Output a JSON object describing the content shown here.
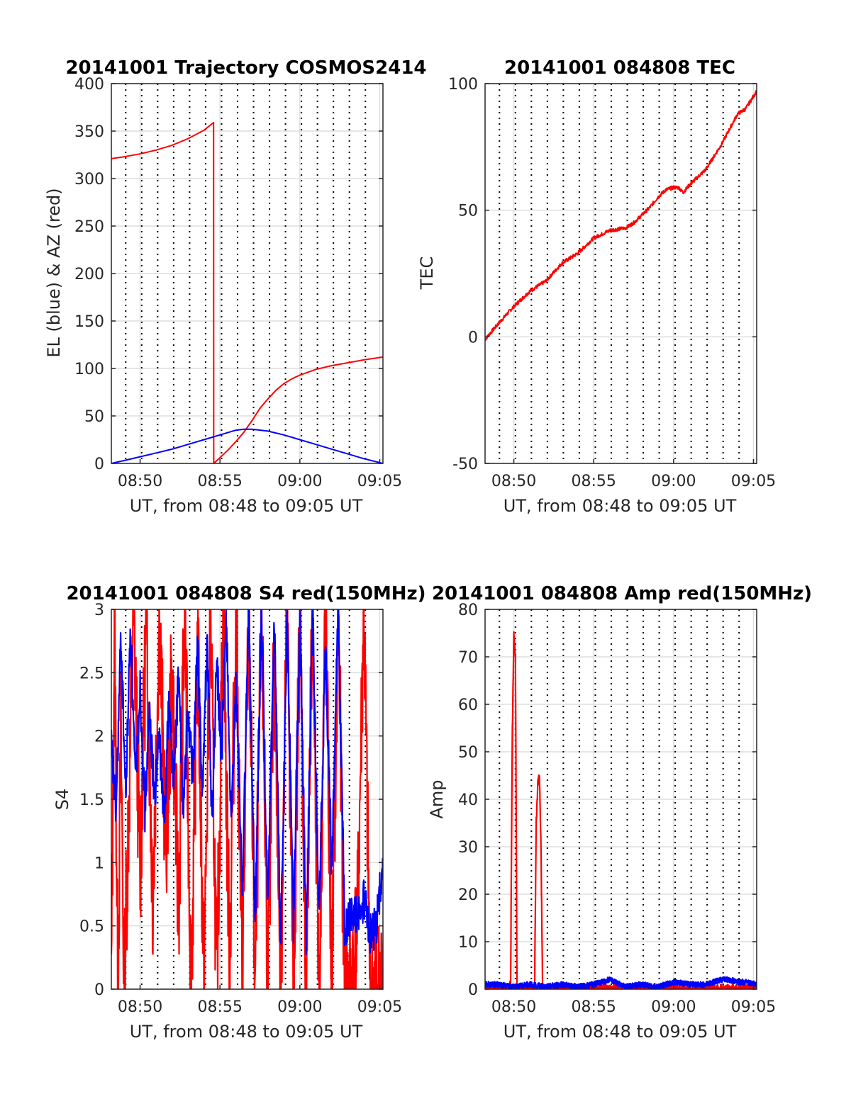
{
  "colors": {
    "red": "#ff0000",
    "blue": "#0000ff",
    "grid": "#dedede",
    "vline": "#000000"
  },
  "chart_data": [
    {
      "type": "line",
      "title": "20141001 Trajectory COSMOS2414",
      "xlabel": "UT, from 08:48 to 09:05 UT",
      "ylabel": "EL (blue) & AZ (red)",
      "x_unit": "minutes after 08:00",
      "xlim": [
        48.2,
        65.2
      ],
      "ylim": [
        0,
        400
      ],
      "xticks": [
        "08:50",
        "08:55",
        "09:00",
        "09:05"
      ],
      "yticks": [
        "0",
        "50",
        "100",
        "150",
        "200",
        "250",
        "300",
        "350",
        "400"
      ],
      "grid": true,
      "series": [
        {
          "color": "#ff0000",
          "x": [
            48.2,
            49.0,
            50.0,
            51.0,
            52.0,
            53.0,
            54.0,
            54.6,
            54.61,
            55.0,
            55.5,
            56.0,
            56.5,
            57.0,
            57.5,
            58.0,
            58.5,
            59.0,
            59.5,
            60.0,
            61.0,
            62.0,
            63.0,
            64.0,
            65.2
          ],
          "y": [
            321,
            323,
            326,
            330,
            335,
            342,
            351,
            359,
            0,
            6,
            14,
            23,
            33,
            45,
            58,
            68,
            77,
            84,
            89,
            93,
            99,
            103,
            106,
            109,
            112
          ]
        },
        {
          "color": "#0000ff",
          "x": [
            48.2,
            49.0,
            50.0,
            51.0,
            52.0,
            53.0,
            54.0,
            55.0,
            56.0,
            56.5,
            57.0,
            58.0,
            59.0,
            60.0,
            61.0,
            62.0,
            63.0,
            64.0,
            65.2
          ],
          "y": [
            0,
            3,
            7,
            11,
            15,
            20,
            25,
            30,
            35,
            36,
            36,
            34,
            30,
            25,
            20,
            15,
            10,
            5,
            0
          ]
        }
      ]
    },
    {
      "type": "line",
      "title": "20141001 084808 TEC",
      "xlabel": "UT, from 08:48 to 09:05 UT",
      "ylabel": "TEC",
      "x_unit": "minutes after 08:00",
      "xlim": [
        48.2,
        65.2
      ],
      "ylim": [
        -50,
        100
      ],
      "xticks": [
        "08:50",
        "08:55",
        "09:00",
        "09:05"
      ],
      "yticks": [
        "-50",
        "0",
        "50",
        "100"
      ],
      "grid": true,
      "series": [
        {
          "color": "#ff0000",
          "x": [
            48.2,
            49.0,
            50.0,
            51.0,
            52.0,
            53.0,
            54.0,
            55.0,
            56.0,
            57.0,
            57.5,
            58.0,
            58.5,
            59.0,
            59.5,
            60.0,
            60.3,
            60.6,
            61.0,
            62.0,
            63.0,
            63.5,
            64.0,
            64.5,
            65.2
          ],
          "y": [
            -1,
            5,
            12,
            18,
            22,
            29,
            33,
            39,
            42,
            43,
            45,
            48,
            51,
            55,
            58,
            59,
            59,
            57,
            60,
            66,
            76,
            82,
            88,
            90,
            97
          ]
        }
      ]
    },
    {
      "type": "line",
      "title": "20141001 084808 S4 red(150MHz)",
      "xlabel": "UT, from 08:48 to 09:05 UT",
      "ylabel": "S4",
      "x_unit": "minutes after 08:00",
      "xlim": [
        48.2,
        65.2
      ],
      "ylim": [
        0,
        3
      ],
      "xticks": [
        "08:50",
        "08:55",
        "09:00",
        "09:05"
      ],
      "yticks": [
        "0",
        "0.5",
        "1",
        "1.5",
        "2",
        "2.5",
        "3"
      ],
      "grid": true,
      "series": [
        {
          "color": "#ff0000",
          "x": [
            48.2,
            48.4,
            48.6,
            48.8,
            49.0,
            49.3,
            49.6,
            50.0,
            50.4,
            50.8,
            51.2,
            51.6,
            52.0,
            52.4,
            52.8,
            53.2,
            53.6,
            54.0,
            54.4,
            54.8,
            55.2,
            55.6,
            56.0,
            56.4,
            56.8,
            57.2,
            57.6,
            58.0,
            58.4,
            58.8,
            59.2,
            59.6,
            60.0,
            60.4,
            60.8,
            61.2,
            61.6,
            62.0,
            62.4,
            62.8,
            63.2,
            63.6,
            64.0,
            64.4,
            64.8,
            65.2
          ],
          "y": [
            0,
            3,
            0,
            2,
            0,
            1.5,
            3,
            0.9,
            3,
            0.7,
            3,
            1.1,
            2.5,
            0.6,
            3,
            0,
            2.8,
            0,
            3,
            0,
            3,
            0.2,
            3,
            0,
            3,
            0,
            3,
            0,
            2.7,
            0,
            3,
            0,
            3,
            0,
            3,
            0,
            3,
            0,
            3,
            0,
            0,
            0.5,
            3,
            0,
            0,
            0
          ]
        },
        {
          "color": "#0000ff",
          "x": [
            48.2,
            48.5,
            48.8,
            49.1,
            49.4,
            49.7,
            50.0,
            50.3,
            50.6,
            50.9,
            51.2,
            51.5,
            51.8,
            52.1,
            52.4,
            52.7,
            53.0,
            53.3,
            53.6,
            53.9,
            54.2,
            54.5,
            54.8,
            55.1,
            55.4,
            55.7,
            56.0,
            56.4,
            56.8,
            57.2,
            57.6,
            58.0,
            58.4,
            58.8,
            59.2,
            59.6,
            60.0,
            60.4,
            60.8,
            61.2,
            61.6,
            62.0,
            62.4,
            62.8,
            63.2,
            63.6,
            64.0,
            64.4,
            64.8,
            65.2
          ],
          "y": [
            1.9,
            1.4,
            2.8,
            1.5,
            2.9,
            1.6,
            2.4,
            1.4,
            2.2,
            1.5,
            2.0,
            1.3,
            2.3,
            1.6,
            2.5,
            1.4,
            2.2,
            1.7,
            2.7,
            1.5,
            2.8,
            1.3,
            2.6,
            1.8,
            3.0,
            1.2,
            2.4,
            0.8,
            3.0,
            0.5,
            3.0,
            0.6,
            2.9,
            0.3,
            3.0,
            0.5,
            3.0,
            0.4,
            3.0,
            0.6,
            2.7,
            0.9,
            3.0,
            0.5,
            0.6,
            0.55,
            0.7,
            0.45,
            0.5,
            1.0
          ]
        }
      ]
    },
    {
      "type": "line",
      "title": "20141001 084808 Amp red(150MHz)",
      "xlabel": "UT, from 08:48 to 09:05 UT",
      "ylabel": "Amp",
      "x_unit": "minutes after 08:00",
      "xlim": [
        48.2,
        65.2
      ],
      "ylim": [
        0,
        80
      ],
      "xticks": [
        "08:50",
        "08:55",
        "09:00",
        "09:05"
      ],
      "yticks": [
        "0",
        "10",
        "20",
        "30",
        "40",
        "50",
        "60",
        "70",
        "80"
      ],
      "grid": true,
      "series": [
        {
          "color": "#ff0000",
          "x": [
            48.2,
            49.7,
            49.8,
            49.9,
            50.0,
            50.1,
            50.2,
            51.3,
            51.4,
            51.5,
            51.6,
            51.7,
            51.8,
            65.2
          ],
          "y": [
            0,
            0,
            1,
            52,
            75,
            70,
            0,
            0,
            35,
            43,
            45,
            30,
            0,
            0
          ]
        },
        {
          "color": "#0000ff",
          "x": [
            48.2,
            49.0,
            50.0,
            51.0,
            52.0,
            53.0,
            54.0,
            55.0,
            56.0,
            57.0,
            58.0,
            59.0,
            60.0,
            61.0,
            62.0,
            62.5,
            63.0,
            63.5,
            64.0,
            64.5,
            65.2
          ],
          "y": [
            1,
            1,
            0.5,
            1,
            0.5,
            1,
            0.5,
            1,
            2,
            0.5,
            1,
            0.5,
            1.5,
            1,
            1,
            1.5,
            2,
            2,
            1.5,
            1.5,
            1
          ]
        }
      ]
    }
  ]
}
